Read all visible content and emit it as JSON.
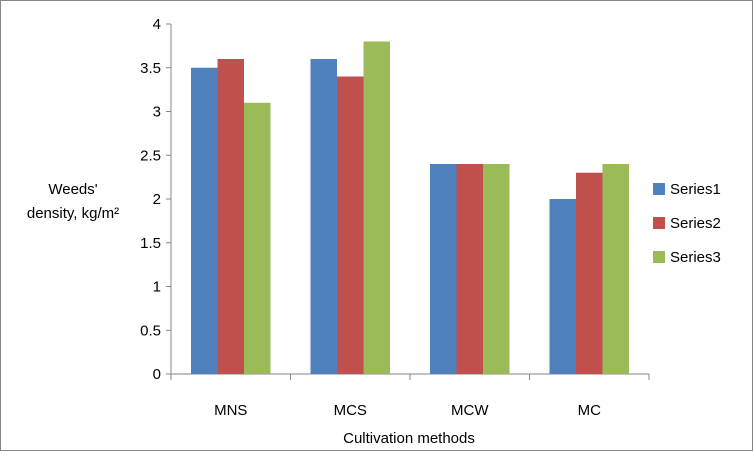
{
  "chart_data": {
    "type": "bar",
    "categories": [
      "MNS",
      "MCS",
      "MCW",
      "MC"
    ],
    "series": [
      {
        "name": "Series1",
        "values": [
          3.5,
          3.6,
          2.4,
          2.0
        ],
        "color": "#4F81BD"
      },
      {
        "name": "Series2",
        "values": [
          3.6,
          3.4,
          2.4,
          2.3
        ],
        "color": "#C0504D"
      },
      {
        "name": "Series3",
        "values": [
          3.1,
          3.8,
          2.4,
          2.4
        ],
        "color": "#9BBB59"
      }
    ],
    "title": "",
    "xlabel": "Cultivation methods",
    "ylabel_line1": "Weeds'",
    "ylabel_line2": "density, kg/m²",
    "ylim": [
      0,
      4
    ],
    "yticks": [
      "0",
      "0.5",
      "1",
      "1.5",
      "2",
      "2.5",
      "3",
      "3.5",
      "4"
    ],
    "grid": false,
    "legend_position": "right"
  }
}
